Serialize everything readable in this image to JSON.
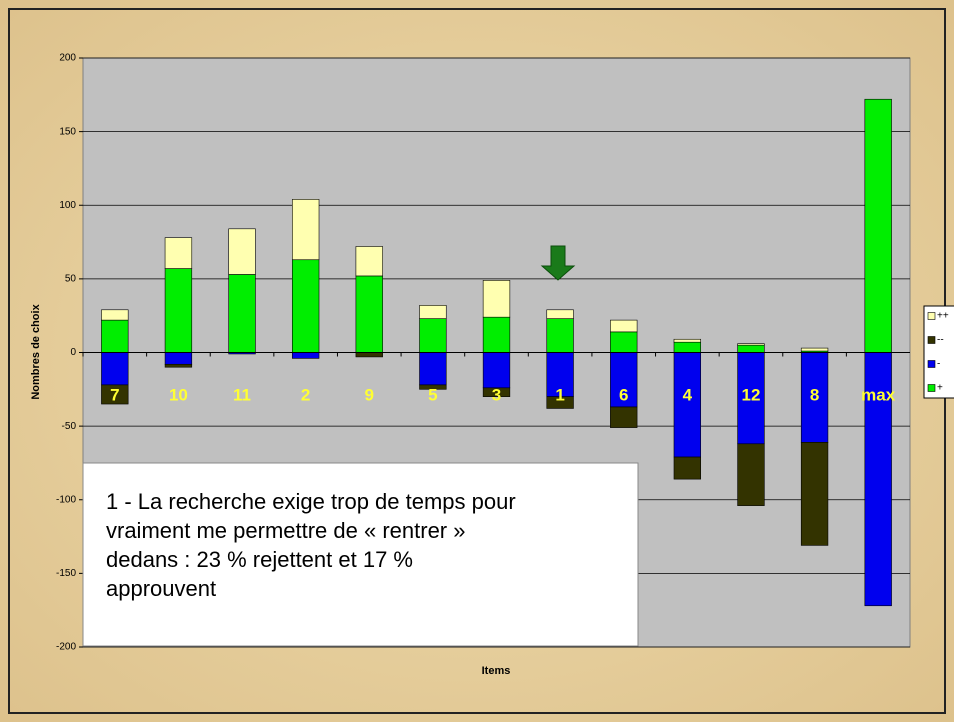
{
  "chart_data": {
    "type": "stacked-bar",
    "categories": [
      "7",
      "10",
      "11",
      "2",
      "9",
      "5",
      "3",
      "1",
      "6",
      "4",
      "12",
      "8",
      "max"
    ],
    "series": [
      {
        "name": "++",
        "color": "#ffffb0",
        "values": [
          7,
          21,
          31,
          41,
          20,
          9,
          25,
          6,
          8,
          2,
          1,
          2,
          0
        ]
      },
      {
        "name": "--",
        "color": "#333300",
        "values": [
          -13,
          -2,
          0,
          0,
          -3,
          -3,
          -6,
          -8,
          -14,
          -15,
          -42,
          -70,
          0
        ]
      },
      {
        "name": "-",
        "color": "#0000ee",
        "values": [
          -22,
          -8,
          -1,
          -4,
          0,
          -22,
          -24,
          -30,
          -37,
          -71,
          -62,
          -61,
          -172
        ]
      },
      {
        "name": "+",
        "color": "#00ee00",
        "values": [
          22,
          57,
          53,
          63,
          52,
          23,
          24,
          23,
          14,
          7,
          5,
          1,
          172
        ]
      }
    ],
    "ylim": [
      -200,
      200
    ],
    "yticks": [
      -200,
      -150,
      -100,
      -50,
      0,
      50,
      100,
      150,
      200
    ],
    "grid": true,
    "ylabel": "Nombres de choix",
    "xlabel": "Items",
    "annotation": [
      "1 - La recherche exige trop de temps pour",
      "vraiment me permettre de « rentrer »",
      "dedans : 23 % rejettent et 17 %",
      "approuvent"
    ]
  }
}
